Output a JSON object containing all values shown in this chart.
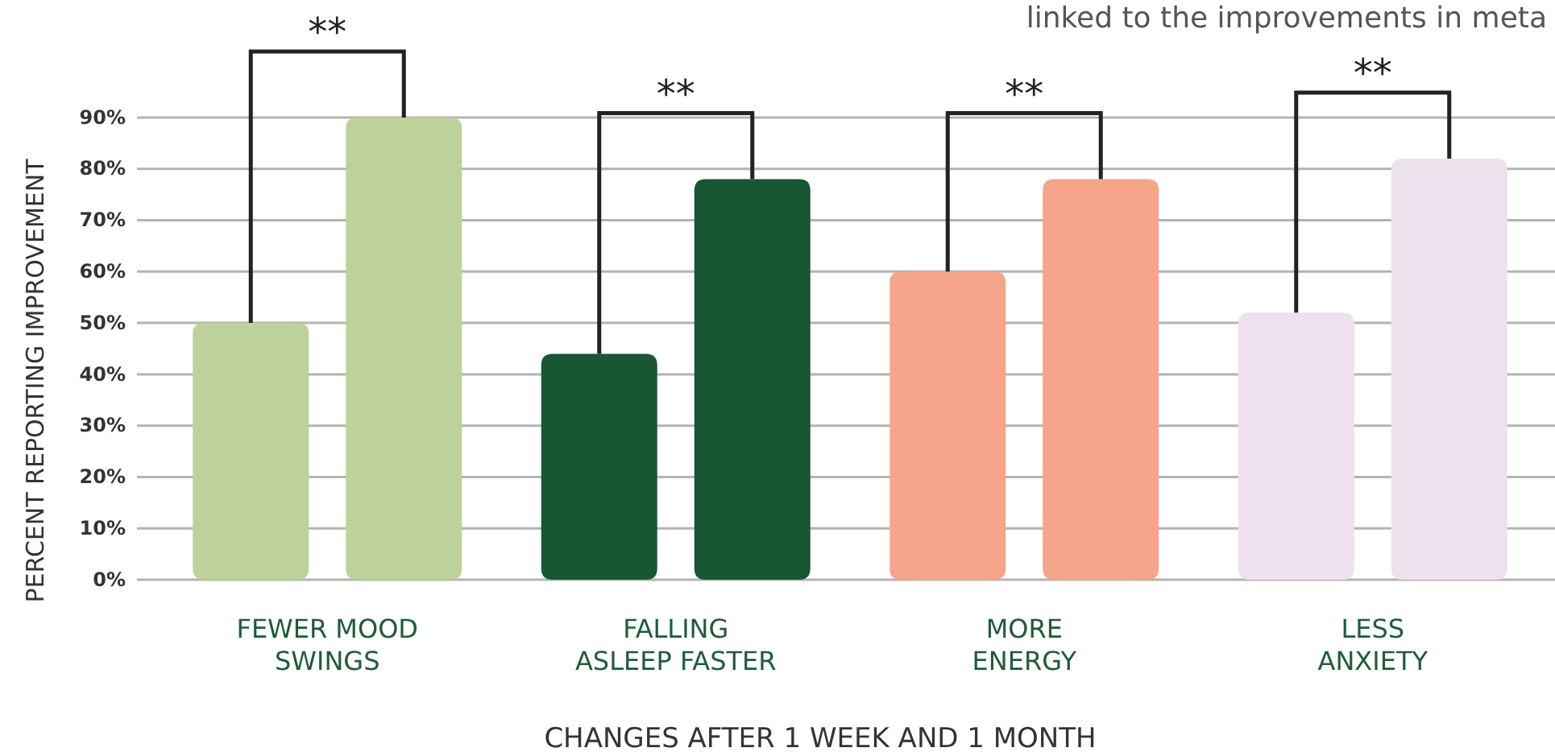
{
  "chart_data": {
    "type": "bar",
    "xlabel": "CHANGES AFTER 1 WEEK AND 1 MONTH",
    "ylabel": "PERCENT REPORTING IMPROVEMENT",
    "categories": [
      "FEWER MOOD\nSWINGS",
      "FALLING\nASLEEP FASTER",
      "MORE\nENERGY",
      "LESS\nANXIETY"
    ],
    "series": [
      {
        "colors": [
          "#bdd19b",
          "#185634",
          "#f6a48a",
          "#ede1ee"
        ],
        "values": [
          50,
          44,
          60,
          52
        ]
      },
      {
        "colors": [
          "#bdd19b",
          "#185634",
          "#f6a48a",
          "#ede1ee"
        ],
        "values": [
          90,
          78,
          78,
          82
        ]
      }
    ],
    "ylim": [
      0,
      90
    ],
    "yticks": [
      {
        "value": 0,
        "label": "0%"
      },
      {
        "value": 10,
        "label": "10%"
      },
      {
        "value": 20,
        "label": "20%"
      },
      {
        "value": 30,
        "label": "30%"
      },
      {
        "value": 40,
        "label": "40%"
      },
      {
        "value": 50,
        "label": "50%"
      },
      {
        "value": 60,
        "label": "60%"
      },
      {
        "value": 70,
        "label": "70%"
      },
      {
        "value": 80,
        "label": "80%"
      },
      {
        "value": 90,
        "label": "90%"
      }
    ],
    "grid": "y",
    "annotations": [
      "linked to the improvements in meta",
      "**",
      "**",
      "**",
      "**"
    ]
  }
}
